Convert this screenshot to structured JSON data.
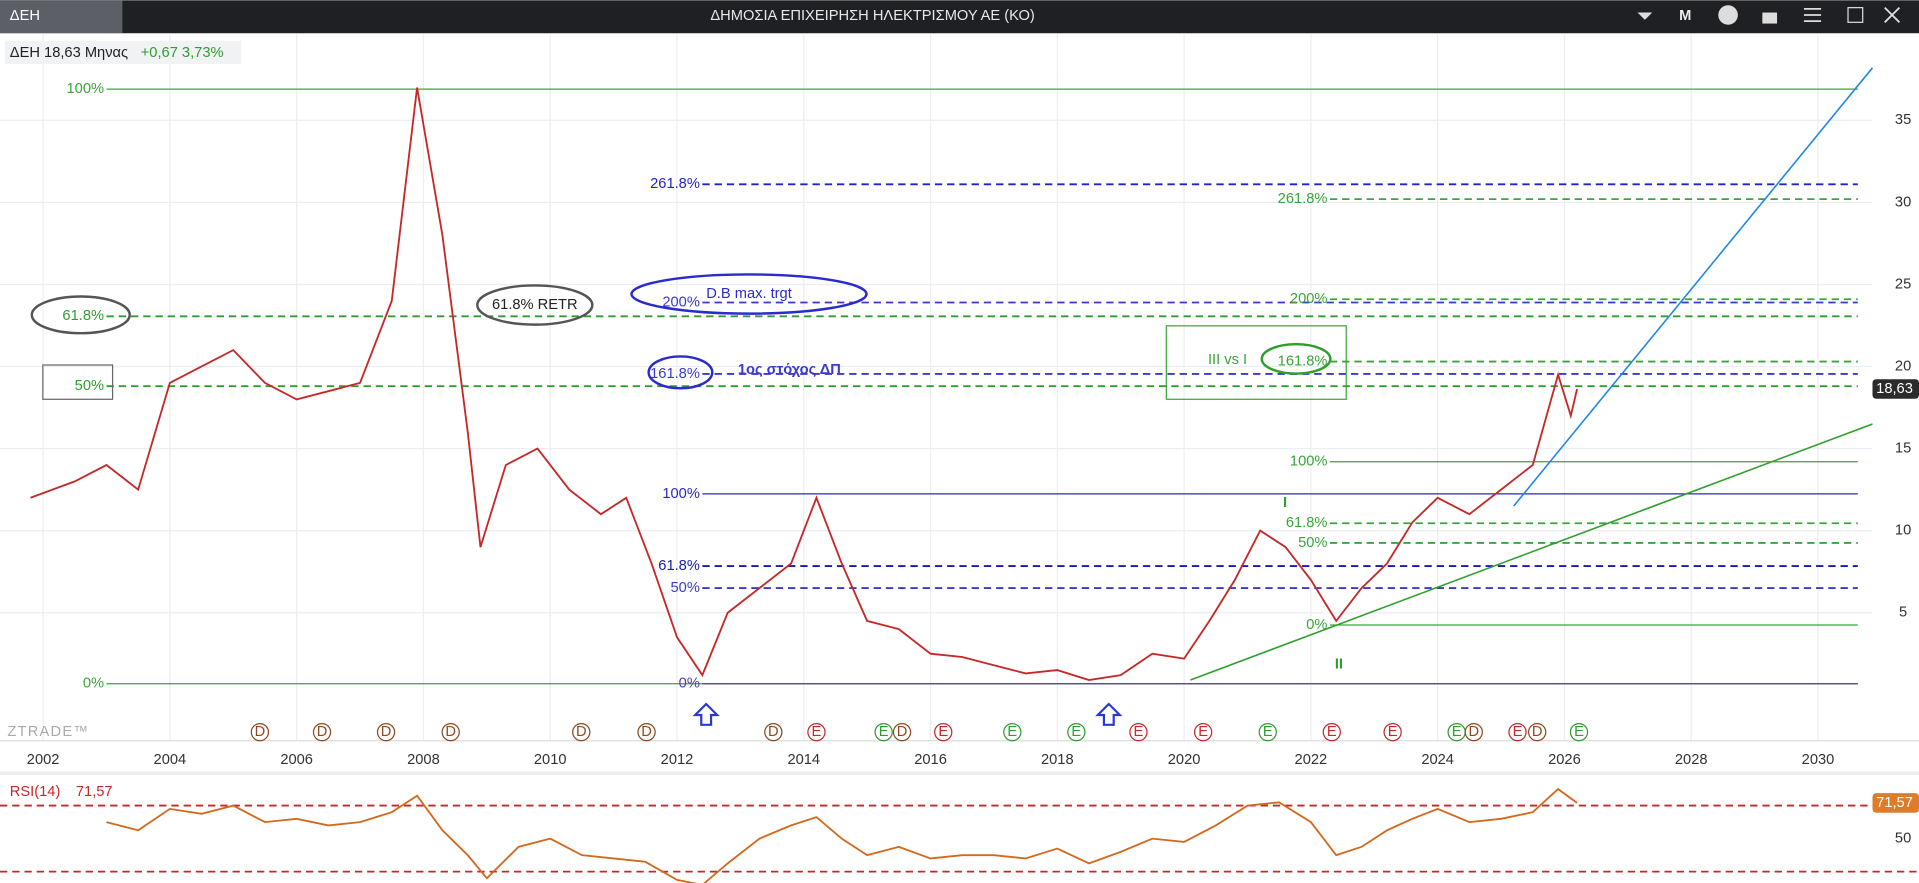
{
  "header": {
    "tab": "ΔΕΗ",
    "title": "ΔΗΜΟΣΙΑ ΕΠΙΧΕΙΡΗΣΗ ΗΛΕΚΤΡΙΣΜΟΥ ΑΕ (ΚΟ)",
    "menu": "M"
  },
  "chart_data": [
    {
      "type": "line",
      "info": "ΔΕΗ 18,63 Μηνας",
      "change": "+0,67 3,73%",
      "watermark": "ZTRADE™",
      "x": [
        2001.8,
        2002.5,
        2003.0,
        2003.5,
        2004.0,
        2004.5,
        2005.0,
        2005.5,
        2006.0,
        2006.5,
        2007.0,
        2007.5,
        2007.9,
        2008.3,
        2008.7,
        2008.9,
        2009.3,
        2009.8,
        2010.3,
        2010.8,
        2011.2,
        2011.6,
        2012.0,
        2012.4,
        2012.8,
        2013.3,
        2013.8,
        2014.2,
        2014.6,
        2015.0,
        2015.5,
        2016.0,
        2016.5,
        2017.0,
        2017.5,
        2018.0,
        2018.5,
        2019.0,
        2019.5,
        2020.0,
        2020.4,
        2020.8,
        2021.2,
        2021.6,
        2022.0,
        2022.4,
        2022.8,
        2023.2,
        2023.6,
        2024.0,
        2024.5,
        2025.0,
        2025.5,
        2025.9,
        2026.1,
        2026.2
      ],
      "series": [
        {
          "color": "#c62828",
          "values": [
            12,
            13,
            14,
            12.5,
            19,
            20,
            21,
            19,
            18,
            18.5,
            19,
            24,
            37,
            28,
            16,
            9,
            14,
            15,
            12.5,
            11,
            12,
            8,
            3.5,
            1.2,
            5,
            6.5,
            8,
            12,
            8,
            4.5,
            4,
            2.5,
            2.3,
            1.8,
            1.3,
            1.5,
            0.9,
            1.2,
            2.5,
            2.2,
            4.5,
            7,
            10,
            9,
            7,
            4.5,
            6.5,
            8,
            10.5,
            12,
            11,
            12.5,
            14,
            19.5,
            17,
            18.63
          ]
        }
      ],
      "xlim": [
        2001.32,
        2030.86
      ],
      "xticks": [
        2002,
        2004,
        2006,
        2008,
        2010,
        2012,
        2014,
        2016,
        2018,
        2020,
        2022,
        2024,
        2026,
        2028,
        2030
      ],
      "ylim": [
        -2.8,
        40.3
      ],
      "yticks": [
        5,
        10,
        15,
        20,
        25,
        30,
        35
      ],
      "grid": true,
      "last": {
        "value": 18.63,
        "label": "18,63"
      },
      "levels": [
        {
          "label": "100%",
          "value": 36.9,
          "x_start": 2003.0,
          "color": "#3aa53a",
          "dashed": false
        },
        {
          "label": "61.8%",
          "value": 23.06,
          "x_start": 2003.0,
          "color": "#2e9e2e",
          "dashed": true
        },
        {
          "label": "50%",
          "value": 18.8,
          "x_start": 2003.0,
          "color": "#2e9e2e",
          "dashed": true
        },
        {
          "label": "0%",
          "value": 0.67,
          "x_start": 2003.0,
          "color": "#3aa53a",
          "dashed": false
        },
        {
          "label": "261.8%",
          "value": 31.1,
          "x_start": 2012.4,
          "color": "#2323c8",
          "dashed": true
        },
        {
          "label": "200%",
          "value": 23.9,
          "x_start": 2012.4,
          "color": "#3a3ad0",
          "dashed": true
        },
        {
          "label": "161.8%",
          "value": 19.55,
          "x_start": 2012.4,
          "color": "#3a3ad0",
          "dashed": true
        },
        {
          "label": "100%",
          "value": 12.24,
          "x_start": 2012.4,
          "color": "#2a2ab8",
          "dashed": false
        },
        {
          "label": "61.8%",
          "value": 7.84,
          "x_start": 2012.4,
          "color": "#1a1ab0",
          "dashed": true
        },
        {
          "label": "50%",
          "value": 6.5,
          "x_start": 2012.4,
          "color": "#3a3ad0",
          "dashed": true
        },
        {
          "label": "0%",
          "value": 0.67,
          "x_start": 2012.4,
          "color": "#5a3ab0",
          "dashed": false
        },
        {
          "label": "261.8%",
          "value": 30.2,
          "x_start": 2022.3,
          "color": "#3aa53a",
          "dashed": true
        },
        {
          "label": "200%",
          "value": 24.1,
          "x_start": 2022.3,
          "color": "#3aa53a",
          "dashed": true
        },
        {
          "label": "161.8%",
          "value": 20.3,
          "x_start": 2022.3,
          "color": "#3aa53a",
          "dashed": true
        },
        {
          "label": "100%",
          "value": 14.2,
          "x_start": 2022.3,
          "color": "#3aa53a",
          "dashed": false
        },
        {
          "label": "61.8%",
          "value": 10.45,
          "x_start": 2022.3,
          "color": "#3aa53a",
          "dashed": true
        },
        {
          "label": "50%",
          "value": 9.25,
          "x_start": 2022.3,
          "color": "#3aa53a",
          "dashed": true
        },
        {
          "label": "0%",
          "value": 4.25,
          "x_start": 2022.3,
          "color": "#3aa53a",
          "dashed": false
        }
      ],
      "trendlines": [
        {
          "color": "#1e88e5",
          "x": [
            2025.2,
            2030.86
          ],
          "y": [
            11.5,
            38.2
          ]
        },
        {
          "color": "#2e9e2e",
          "x": [
            2020.1,
            2030.86
          ],
          "y": [
            0.9,
            16.5
          ]
        }
      ],
      "annotations": [
        "61.8% RETR",
        "D.B max. trgt",
        "1ος στόχος ΔΠ",
        "III vs I",
        "I",
        "II"
      ],
      "events": [
        {
          "x": 2005.42,
          "label": "D",
          "color": "#8d4a1e"
        },
        {
          "x": 2006.4,
          "label": "D",
          "color": "#8d4a1e"
        },
        {
          "x": 2007.41,
          "label": "D",
          "color": "#8d4a1e"
        },
        {
          "x": 2008.43,
          "label": "D",
          "color": "#8d4a1e"
        },
        {
          "x": 2010.49,
          "label": "D",
          "color": "#8d4a1e"
        },
        {
          "x": 2011.52,
          "label": "D",
          "color": "#8d4a1e"
        },
        {
          "x": 2013.52,
          "label": "D",
          "color": "#8d4a1e"
        },
        {
          "x": 2014.2,
          "label": "E",
          "color": "#c62828"
        },
        {
          "x": 2015.26,
          "label": "E",
          "color": "#2e9e2e"
        },
        {
          "x": 2015.55,
          "label": "D",
          "color": "#8d4a1e"
        },
        {
          "x": 2016.2,
          "label": "E",
          "color": "#c62828"
        },
        {
          "x": 2017.29,
          "label": "E",
          "color": "#2e9e2e"
        },
        {
          "x": 2018.3,
          "label": "E",
          "color": "#2e9e2e"
        },
        {
          "x": 2019.28,
          "label": "E",
          "color": "#c62828"
        },
        {
          "x": 2020.3,
          "label": "E",
          "color": "#c62828"
        },
        {
          "x": 2021.32,
          "label": "E",
          "color": "#2e9e2e"
        },
        {
          "x": 2022.33,
          "label": "E",
          "color": "#c62828"
        },
        {
          "x": 2023.29,
          "label": "E",
          "color": "#c62828"
        },
        {
          "x": 2024.3,
          "label": "E",
          "color": "#2e9e2e"
        },
        {
          "x": 2024.57,
          "label": "D",
          "color": "#8d4a1e"
        },
        {
          "x": 2025.26,
          "label": "E",
          "color": "#c62828"
        },
        {
          "x": 2025.57,
          "label": "D",
          "color": "#8d4a1e"
        },
        {
          "x": 2026.23,
          "label": "E",
          "color": "#2e9e2e"
        }
      ]
    },
    {
      "type": "line",
      "title": "RSI(14)",
      "x": [
        2003.0,
        2003.5,
        2004.0,
        2004.5,
        2005.0,
        2005.5,
        2006.0,
        2006.5,
        2007.0,
        2007.5,
        2007.9,
        2008.3,
        2008.7,
        2009.0,
        2009.5,
        2010.0,
        2010.5,
        2011.0,
        2011.5,
        2012.0,
        2012.4,
        2012.8,
        2013.3,
        2013.8,
        2014.2,
        2014.6,
        2015.0,
        2015.5,
        2016.0,
        2016.5,
        2017.0,
        2017.5,
        2018.0,
        2018.5,
        2019.0,
        2019.5,
        2020.0,
        2020.5,
        2021.0,
        2021.5,
        2022.0,
        2022.4,
        2022.8,
        2023.2,
        2023.6,
        2024.0,
        2024.5,
        2025.0,
        2025.5,
        2025.9,
        2026.2
      ],
      "series": [
        {
          "color": "#d2691e",
          "values": [
            60,
            55,
            68,
            65,
            70,
            60,
            62,
            58,
            60,
            66,
            76,
            55,
            40,
            26,
            45,
            50,
            40,
            38,
            36,
            25,
            22,
            35,
            50,
            58,
            63,
            50,
            40,
            45,
            38,
            40,
            40,
            38,
            44,
            35,
            42,
            50,
            48,
            58,
            70,
            72,
            60,
            40,
            45,
            55,
            62,
            68,
            60,
            62,
            66,
            80,
            71.57
          ]
        }
      ],
      "xlim": [
        2001.32,
        2030.86
      ],
      "ylim": [
        23.3,
        87
      ],
      "yticks": [
        50
      ],
      "levels": [
        70,
        30
      ],
      "last": {
        "value": 71.57,
        "label": "71,57"
      }
    }
  ]
}
